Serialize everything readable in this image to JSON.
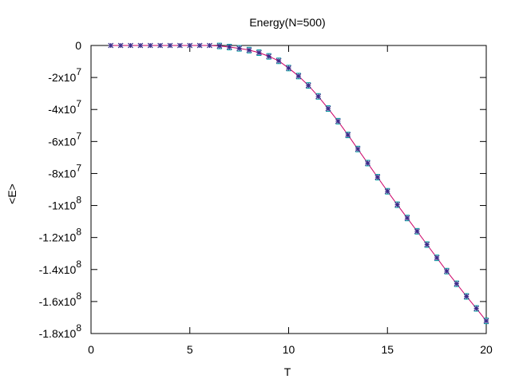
{
  "chart_data": {
    "type": "line",
    "title": "Energy(N=500)",
    "xlabel": "T",
    "ylabel": "<E>",
    "xlim": [
      0,
      20
    ],
    "ylim": [
      -180000000,
      0
    ],
    "grid": false,
    "legend": "none",
    "x_ticks": [
      {
        "value": 0,
        "label": "0"
      },
      {
        "value": 5,
        "label": "5"
      },
      {
        "value": 10,
        "label": "10"
      },
      {
        "value": 15,
        "label": "15"
      },
      {
        "value": 20,
        "label": "20"
      }
    ],
    "y_ticks": [
      {
        "value": 0,
        "mant": "0",
        "exp": ""
      },
      {
        "value": -20000000,
        "mant": "-2x10",
        "exp": "7"
      },
      {
        "value": -40000000,
        "mant": "-4x10",
        "exp": "7"
      },
      {
        "value": -60000000,
        "mant": "-6x10",
        "exp": "7"
      },
      {
        "value": -80000000,
        "mant": "-8x10",
        "exp": "7"
      },
      {
        "value": -100000000,
        "mant": "-1x10",
        "exp": "8"
      },
      {
        "value": -120000000,
        "mant": "-1.2x10",
        "exp": "8"
      },
      {
        "value": -140000000,
        "mant": "-1.4x10",
        "exp": "8"
      },
      {
        "value": -160000000,
        "mant": "-1.6x10",
        "exp": "8"
      },
      {
        "value": -180000000,
        "mant": "-1.8x10",
        "exp": "8"
      }
    ],
    "series": [
      {
        "color": "#cc0066",
        "marker_color": "#3a2c8a",
        "errorbar_color": "#00a0a0",
        "x": [
          1,
          1.5,
          2,
          2.5,
          3,
          3.5,
          4,
          4.5,
          5,
          5.5,
          6,
          6.5,
          7,
          7.5,
          8,
          8.5,
          9,
          9.5,
          10,
          10.5,
          11,
          11.5,
          12,
          12.5,
          13,
          13.5,
          14,
          14.5,
          15,
          15.5,
          16,
          16.5,
          17,
          17.5,
          18,
          18.5,
          19,
          19.5,
          20
        ],
        "y": [
          0,
          0,
          0,
          0,
          0,
          0,
          0,
          0,
          0,
          0,
          0,
          -300000,
          -1000000,
          -1800000,
          -2900000,
          -4500000,
          -6800000,
          -9600000,
          -14100000,
          -19100000,
          -25000000,
          -31800000,
          -39400000,
          -47300000,
          -55900000,
          -64700000,
          -73500000,
          -82300000,
          -91100000,
          -99500000,
          -107800000,
          -116100000,
          -124400000,
          -132700000,
          -141000000,
          -148900000,
          -156800000,
          -164300000,
          -172100000
        ]
      }
    ]
  }
}
